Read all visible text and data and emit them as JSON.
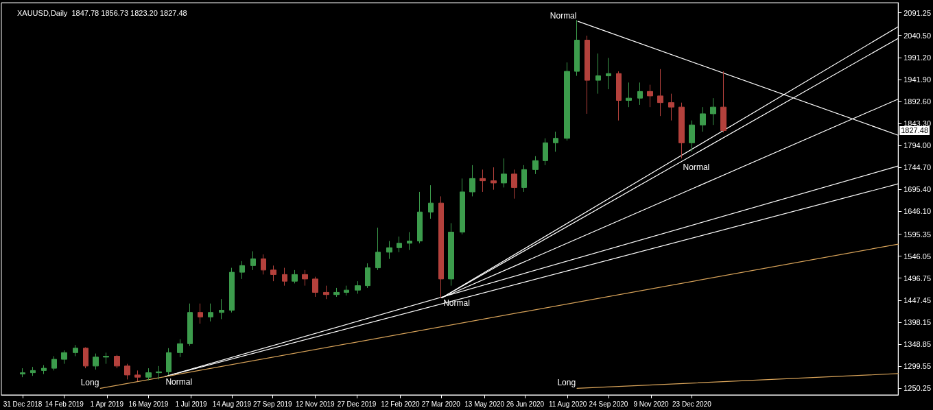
{
  "chart_data": {
    "type": "candlestick",
    "title": "XAUUSD,Daily  1847.78 1856.73 1823.20 1827.48",
    "x": [
      "2018-12-31",
      "2019-01-11",
      "2019-01-23",
      "2019-02-03",
      "2019-02-14",
      "2019-02-26",
      "2019-03-09",
      "2019-03-20",
      "2019-03-31",
      "2019-04-12",
      "2019-04-23",
      "2019-05-04",
      "2019-05-16",
      "2019-05-27",
      "2019-06-07",
      "2019-06-19",
      "2019-06-30",
      "2019-07-11",
      "2019-07-22",
      "2019-08-03",
      "2019-08-14",
      "2019-08-25",
      "2019-09-06",
      "2019-09-17",
      "2019-09-28",
      "2019-10-10",
      "2019-10-21",
      "2019-11-01",
      "2019-11-12",
      "2019-11-24",
      "2019-12-05",
      "2019-12-16",
      "2019-12-28",
      "2020-01-08",
      "2020-01-19",
      "2020-01-31",
      "2020-02-11",
      "2020-02-22",
      "2020-03-04",
      "2020-03-16",
      "2020-03-27",
      "2020-04-07",
      "2020-04-19",
      "2020-04-30",
      "2020-05-11",
      "2020-05-23",
      "2020-06-03",
      "2020-06-14",
      "2020-06-25",
      "2020-07-07",
      "2020-07-18",
      "2020-07-29",
      "2020-08-10",
      "2020-08-21",
      "2020-09-01",
      "2020-09-13",
      "2020-09-24",
      "2020-10-05",
      "2020-10-16",
      "2020-10-28",
      "2020-11-08",
      "2020-11-19",
      "2020-12-01",
      "2020-12-12",
      "2020-12-23",
      "2021-01-04",
      "2021-01-15",
      "2021-01-26"
    ],
    "ohlc": [
      [
        1282,
        1295,
        1275,
        1285
      ],
      [
        1285,
        1298,
        1278,
        1290
      ],
      [
        1290,
        1302,
        1282,
        1295
      ],
      [
        1295,
        1322,
        1290,
        1315
      ],
      [
        1315,
        1335,
        1305,
        1330
      ],
      [
        1330,
        1347,
        1322,
        1340
      ],
      [
        1340,
        1342,
        1295,
        1300
      ],
      [
        1300,
        1328,
        1292,
        1320
      ],
      [
        1320,
        1330,
        1305,
        1322
      ],
      [
        1322,
        1325,
        1295,
        1300
      ],
      [
        1300,
        1305,
        1270,
        1280
      ],
      [
        1280,
        1290,
        1266,
        1275
      ],
      [
        1275,
        1295,
        1268,
        1285
      ],
      [
        1285,
        1300,
        1270,
        1287
      ],
      [
        1287,
        1340,
        1280,
        1330
      ],
      [
        1330,
        1360,
        1320,
        1350
      ],
      [
        1350,
        1440,
        1345,
        1420
      ],
      [
        1420,
        1440,
        1395,
        1410
      ],
      [
        1410,
        1440,
        1400,
        1420
      ],
      [
        1420,
        1450,
        1405,
        1425
      ],
      [
        1425,
        1520,
        1420,
        1510
      ],
      [
        1510,
        1535,
        1495,
        1525
      ],
      [
        1525,
        1557,
        1515,
        1540
      ],
      [
        1540,
        1550,
        1505,
        1515
      ],
      [
        1515,
        1525,
        1490,
        1505
      ],
      [
        1505,
        1520,
        1480,
        1490
      ],
      [
        1490,
        1515,
        1485,
        1505
      ],
      [
        1505,
        1515,
        1480,
        1495
      ],
      [
        1495,
        1500,
        1455,
        1465
      ],
      [
        1465,
        1480,
        1450,
        1460
      ],
      [
        1460,
        1475,
        1455,
        1465
      ],
      [
        1465,
        1480,
        1458,
        1470
      ],
      [
        1470,
        1490,
        1462,
        1480
      ],
      [
        1480,
        1530,
        1475,
        1520
      ],
      [
        1520,
        1610,
        1515,
        1555
      ],
      [
        1555,
        1580,
        1540,
        1565
      ],
      [
        1565,
        1590,
        1555,
        1575
      ],
      [
        1575,
        1600,
        1560,
        1580
      ],
      [
        1580,
        1690,
        1575,
        1645
      ],
      [
        1645,
        1705,
        1630,
        1665
      ],
      [
        1665,
        1680,
        1452,
        1495
      ],
      [
        1495,
        1620,
        1480,
        1600
      ],
      [
        1600,
        1720,
        1595,
        1690
      ],
      [
        1690,
        1750,
        1680,
        1720
      ],
      [
        1720,
        1740,
        1690,
        1715
      ],
      [
        1715,
        1745,
        1695,
        1710
      ],
      [
        1710,
        1765,
        1700,
        1730
      ],
      [
        1730,
        1740,
        1675,
        1700
      ],
      [
        1700,
        1750,
        1690,
        1740
      ],
      [
        1740,
        1770,
        1730,
        1760
      ],
      [
        1760,
        1810,
        1750,
        1800
      ],
      [
        1800,
        1825,
        1780,
        1810
      ],
      [
        1810,
        1980,
        1805,
        1960
      ],
      [
        1960,
        2075,
        1950,
        2030
      ],
      [
        2030,
        2040,
        1865,
        1940
      ],
      [
        1940,
        2000,
        1910,
        1950
      ],
      [
        1950,
        1990,
        1920,
        1955
      ],
      [
        1955,
        1960,
        1850,
        1895
      ],
      [
        1895,
        1935,
        1880,
        1900
      ],
      [
        1900,
        1935,
        1885,
        1915
      ],
      [
        1915,
        1930,
        1880,
        1905
      ],
      [
        1905,
        1965,
        1860,
        1890
      ],
      [
        1890,
        1910,
        1850,
        1880
      ],
      [
        1880,
        1890,
        1765,
        1800
      ],
      [
        1800,
        1850,
        1780,
        1840
      ],
      [
        1840,
        1880,
        1825,
        1865
      ],
      [
        1865,
        1900,
        1840,
        1880
      ],
      [
        1880,
        1960,
        1823.2,
        1827.48
      ]
    ],
    "colors": [
      "#3c9c4c",
      "#3c9c4c",
      "#3c9c4c",
      "#3c9c4c",
      "#3c9c4c",
      "#3c9c4c",
      "#b4413c",
      "#3c9c4c",
      "#3c9c4c",
      "#b4413c",
      "#b4413c",
      "#b4413c",
      "#3c9c4c",
      "#3c9c4c",
      "#3c9c4c",
      "#3c9c4c",
      "#3c9c4c",
      "#b4413c",
      "#3c9c4c",
      "#3c9c4c",
      "#3c9c4c",
      "#3c9c4c",
      "#3c9c4c",
      "#b4413c",
      "#b4413c",
      "#b4413c",
      "#3c9c4c",
      "#b4413c",
      "#b4413c",
      "#b4413c",
      "#3c9c4c",
      "#3c9c4c",
      "#3c9c4c",
      "#3c9c4c",
      "#3c9c4c",
      "#3c9c4c",
      "#3c9c4c",
      "#3c9c4c",
      "#3c9c4c",
      "#3c9c4c",
      "#b4413c",
      "#3c9c4c",
      "#3c9c4c",
      "#3c9c4c",
      "#b4413c",
      "#b4413c",
      "#3c9c4c",
      "#b4413c",
      "#3c9c4c",
      "#3c9c4c",
      "#3c9c4c",
      "#3c9c4c",
      "#3c9c4c",
      "#3c9c4c",
      "#b4413c",
      "#3c9c4c",
      "#3c9c4c",
      "#b4413c",
      "#3c9c4c",
      "#3c9c4c",
      "#b4413c",
      "#b4413c",
      "#b4413c",
      "#b4413c",
      "#3c9c4c",
      "#3c9c4c",
      "#3c9c4c",
      "#b4413c"
    ],
    "series": [
      {
        "type": "line",
        "color": "#ffffff",
        "x": [
          "2020-03-28",
          "2021-08-03"
        ],
        "values": [
          1453,
          2034
        ]
      },
      {
        "type": "line",
        "color": "#ffffff",
        "x": [
          "2020-03-28",
          "2021-08-03"
        ],
        "values": [
          1453,
          2060
        ]
      },
      {
        "type": "line",
        "color": "#ffffff",
        "x": [
          "2020-03-28",
          "2021-08-03"
        ],
        "values": [
          1453,
          1898
        ]
      },
      {
        "type": "line",
        "color": "#ffffff",
        "x": [
          "2019-06-02",
          "2021-08-03"
        ],
        "values": [
          1276,
          1748
        ]
      },
      {
        "type": "line",
        "color": "#ffffff",
        "x": [
          "2019-06-02",
          "2021-08-03"
        ],
        "values": [
          1276,
          1708
        ]
      },
      {
        "type": "line",
        "color": "#d9a45a",
        "x": [
          "2019-03-25",
          "2021-08-03"
        ],
        "values": [
          1250,
          1573
        ]
      },
      {
        "type": "line",
        "color": "#d9a45a",
        "x": [
          "2020-08-21",
          "2021-08-03"
        ],
        "values": [
          1250,
          1283
        ]
      },
      {
        "type": "line",
        "color": "#ffffff",
        "x": [
          "2020-08-22",
          "2021-08-03"
        ],
        "values": [
          2072,
          1817
        ]
      }
    ],
    "annotations": [
      {
        "text": "Normal",
        "x": "2020-08-22",
        "y": 2072
      },
      {
        "text": "Normal",
        "x": "2020-12-12",
        "y": 1758
      },
      {
        "text": "Normal",
        "x": "2020-03-28",
        "y": 1453
      },
      {
        "text": "Normal",
        "x": "2019-06-02",
        "y": 1276
      },
      {
        "text": "Long",
        "x": "2019-03-25",
        "y": 1250
      },
      {
        "text": "Long",
        "x": "2020-08-21",
        "y": 1250
      },
      "1827.48"
    ],
    "xlim": [
      "2018-12-08",
      "2021-08-03"
    ],
    "xticks": [
      {
        "value": "2018-12-31",
        "label": "31 Dec 2018"
      },
      {
        "value": "2019-02-14",
        "label": "14 Feb 2019"
      },
      {
        "value": "2019-04-01",
        "label": "1 Apr 2019"
      },
      {
        "value": "2019-05-16",
        "label": "16 May 2019"
      },
      {
        "value": "2019-07-01",
        "label": "1 Jul 2019"
      },
      {
        "value": "2019-08-14",
        "label": "14 Aug 2019"
      },
      {
        "value": "2019-09-27",
        "label": "27 Sep 2019"
      },
      {
        "value": "2019-11-12",
        "label": "12 Nov 2019"
      },
      {
        "value": "2019-12-27",
        "label": "27 Dec 2019"
      },
      {
        "value": "2020-02-12",
        "label": "12 Feb 2020"
      },
      {
        "value": "2020-03-27",
        "label": "27 Mar 2020"
      },
      {
        "value": "2020-05-13",
        "label": "13 May 2020"
      },
      {
        "value": "2020-06-26",
        "label": "26 Jun 2020"
      },
      {
        "value": "2020-08-11",
        "label": "11 Aug 2020"
      },
      {
        "value": "2020-09-24",
        "label": "24 Sep 2020"
      },
      {
        "value": "2020-11-09",
        "label": "9 Nov 2020"
      },
      {
        "value": "2020-12-23",
        "label": "23 Dec 2020"
      }
    ],
    "ylim": [
      1235.3,
      2113.7
    ],
    "yticks": [
      {
        "value": 1250.25,
        "label": "1250.25"
      },
      {
        "value": 1299.55,
        "label": "1299.55"
      },
      {
        "value": 1348.85,
        "label": "1348.85"
      },
      {
        "value": 1398.15,
        "label": "1398.15"
      },
      {
        "value": 1447.45,
        "label": "1447.45"
      },
      {
        "value": 1496.75,
        "label": "1496.75"
      },
      {
        "value": 1546.05,
        "label": "1546.05"
      },
      {
        "value": 1595.35,
        "label": "1595.35"
      },
      {
        "value": 1646.1,
        "label": "1646.10"
      },
      {
        "value": 1695.4,
        "label": "1695.40"
      },
      {
        "value": 1744.7,
        "label": "1744.70"
      },
      {
        "value": 1794,
        "label": "1794.00"
      },
      {
        "value": 1843.3,
        "label": "1843.30"
      },
      {
        "value": 1892.6,
        "label": "1892.60"
      },
      {
        "value": 1941.9,
        "label": "1941.90"
      },
      {
        "value": 1991.2,
        "label": "1991.20"
      },
      {
        "value": 2040.5,
        "label": "2040.50"
      },
      {
        "value": 2091.25,
        "label": "2091.25"
      }
    ]
  }
}
